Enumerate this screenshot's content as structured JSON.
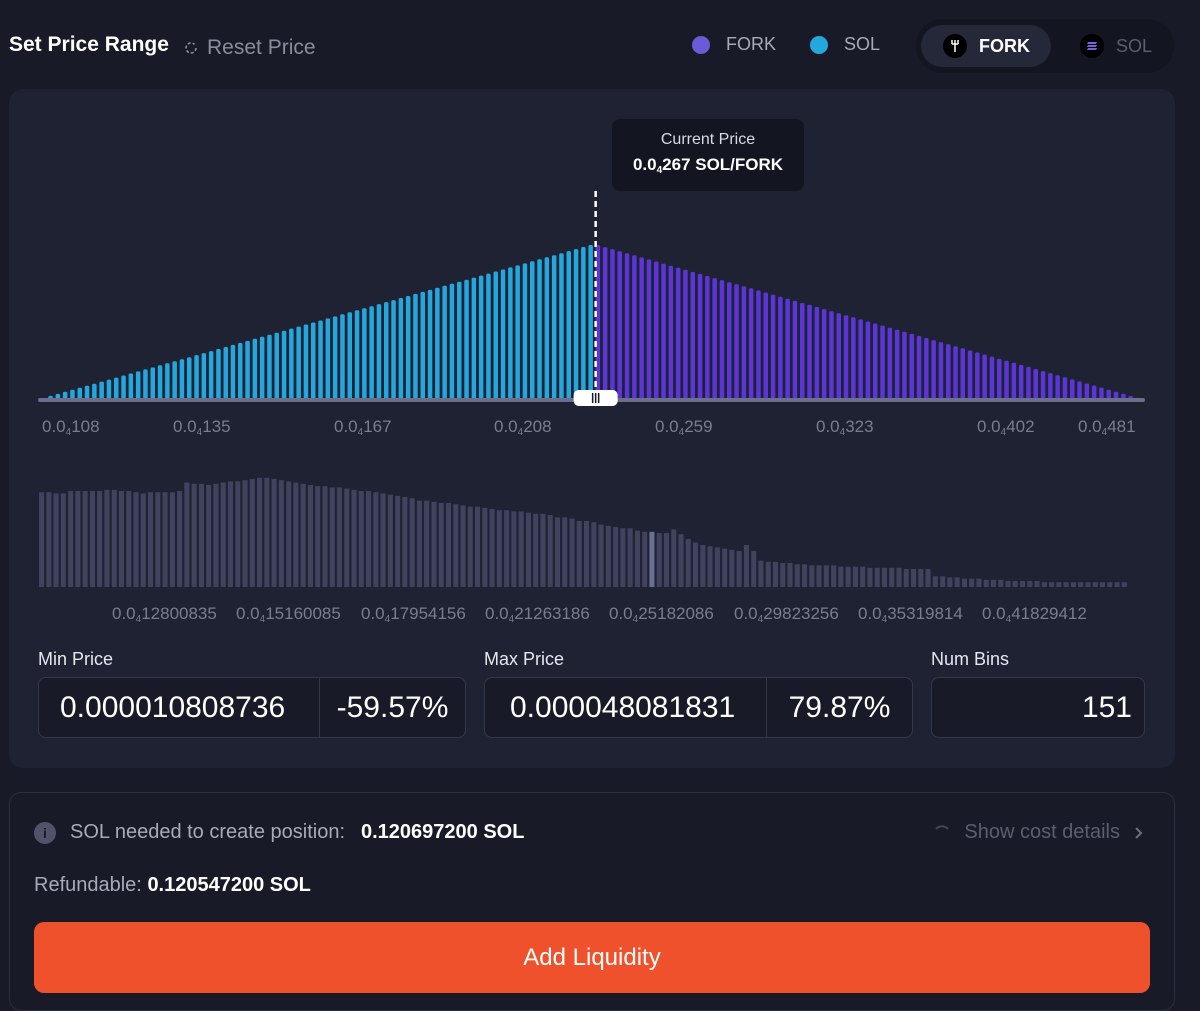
{
  "header": {
    "title": "Set Price Range",
    "reset_label": "Reset Price",
    "legend": [
      {
        "label": "FORK",
        "color": "#6a5cd6"
      },
      {
        "label": "SOL",
        "color": "#23a7dc"
      }
    ],
    "toggle": {
      "active": "FORK",
      "inactive": "SOL"
    }
  },
  "tooltip": {
    "title": "Current Price",
    "value_prefix": "0.0",
    "value_sub": "4",
    "value_rest": "267 SOL/FORK"
  },
  "chart_data": [
    {
      "type": "bar",
      "description_counts": {
        "sol_bins": 76,
        "fork_bins": 75
      },
      "x_tick_labels": [
        "0.0₄108",
        "0.0₄135",
        "0.0₄167",
        "0.0₄208",
        "0.0₄259",
        "0.0₄323",
        "0.0₄402",
        "0.0₄481"
      ],
      "series": [
        {
          "name": "SOL",
          "color": "#23a7dc",
          "shape": "linear ramp up to current price"
        },
        {
          "name": "FORK",
          "color": "#5b35d6",
          "shape": "linear ramp down from current price"
        }
      ],
      "current_price": "0.0₄267"
    },
    {
      "type": "bar",
      "color": "#40425e",
      "x_tick_labels": [
        "0.0₄12800835",
        "0.0₄15160085",
        "0.0₄17954156",
        "0.0₄21263186",
        "0.0₄25182086",
        "0.0₄29823256",
        "0.0₄35319814",
        "0.0₄41829412"
      ],
      "values": [
        79,
        79,
        78,
        78,
        80,
        80,
        80,
        80,
        80,
        81,
        81,
        80,
        80,
        79,
        78,
        79,
        79,
        79,
        79,
        80,
        87,
        86,
        86,
        85,
        86,
        87,
        88,
        88,
        89,
        90,
        91,
        91,
        90,
        89,
        88,
        87,
        86,
        85,
        84,
        84,
        83,
        83,
        82,
        81,
        80,
        80,
        79,
        78,
        77,
        76,
        75,
        74,
        72,
        72,
        71,
        70,
        70,
        69,
        68,
        67,
        67,
        66,
        65,
        64,
        64,
        63,
        63,
        62,
        61,
        61,
        60,
        58,
        58,
        57,
        55,
        55,
        54,
        52,
        51,
        50,
        49,
        49,
        47,
        46,
        46,
        45,
        45,
        48,
        44,
        40,
        37,
        35,
        34,
        33,
        32,
        31,
        30,
        35,
        30,
        22,
        21,
        21,
        20,
        20,
        19,
        19,
        18,
        18,
        18,
        18,
        17,
        17,
        17,
        17,
        16,
        16,
        16,
        16,
        16,
        15,
        15,
        15,
        15,
        9,
        9,
        8,
        8,
        7,
        7,
        7,
        6,
        6,
        6,
        5,
        5,
        5,
        5,
        5,
        4,
        4,
        4,
        4,
        4,
        4,
        4,
        4,
        4,
        4,
        4,
        4
      ],
      "highlight_index": 84
    }
  ],
  "fields": {
    "min_label": "Min Price",
    "min_value": "0.000010808736",
    "min_pct": "-59.57%",
    "max_label": "Max Price",
    "max_value": "0.000048081831",
    "max_pct": "79.87%",
    "bins_label": "Num Bins",
    "bins_value": "151"
  },
  "info": {
    "sol_needed_label": "SOL needed to create position:",
    "sol_needed_value": "0.120697200 SOL",
    "cost_details": "Show cost details",
    "refund_label": "Refundable:",
    "refund_value": "0.120547200 SOL",
    "add_button": "Add Liquidity"
  }
}
